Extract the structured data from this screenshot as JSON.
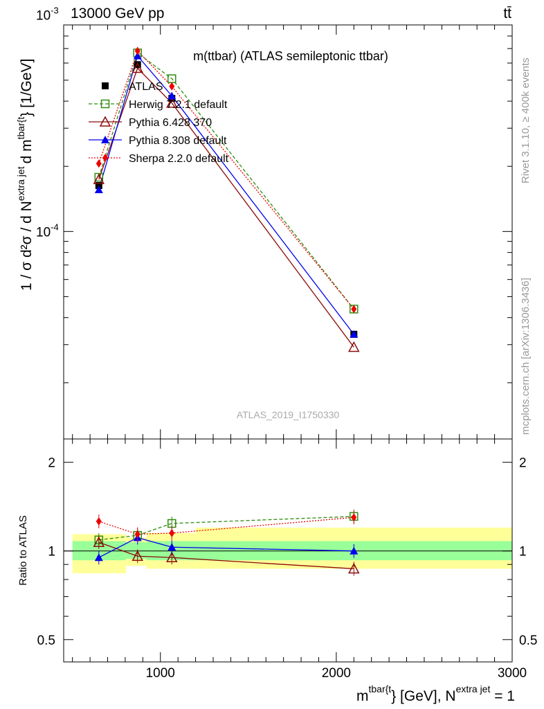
{
  "header": {
    "left": "13000 GeV pp",
    "right": "tt̄"
  },
  "side_text": {
    "rivet": "Rivet 3.1.10, ≥ 400k events",
    "mcplots": "mcplots.cern.ch [arXiv:1306.3436]"
  },
  "colors": {
    "data": "#000000",
    "herwig": "#2e8b0e",
    "pythia6": "#8b0a0a",
    "pythia8": "#0000ee",
    "sherpa": "#ee0000",
    "band_inner": "#99ff99",
    "band_outer": "#ffff99"
  },
  "chart_data": [
    {
      "type": "line",
      "title": "m(ttbar) (ATLAS semileptonic ttbar)",
      "watermark": "ATLAS_2019_I1750330",
      "ylabel": {
        "main": "1 / σ d²σ / d N",
        "sup1": "extra jet",
        "mid": "d m",
        "sup2": "tbar{t",
        "tail": "} [1/GeV]"
      },
      "yscale": "log",
      "ylim": [
        1.1e-05,
        0.0009
      ],
      "xlim": [
        450,
        3000
      ],
      "x": [
        650,
        870,
        1065,
        2100
      ],
      "legend": [
        "ATLAS",
        "Herwig 7.2.1 default",
        "Pythia 6.428 370",
        "Pythia 8.308 default",
        "Sherpa 2.2.0 default"
      ],
      "series": [
        {
          "name": "ATLAS",
          "key": "data",
          "values": [
            0.000163,
            0.00059,
            0.000412,
            3.35e-05
          ]
        },
        {
          "name": "Herwig 7.2.1 default",
          "key": "herwig",
          "values": [
            0.000178,
            0.000668,
            0.000508,
            4.38e-05
          ]
        },
        {
          "name": "Pythia 6.428 370",
          "key": "pythia6",
          "values": [
            0.000174,
            0.000568,
            0.000392,
            2.92e-05
          ]
        },
        {
          "name": "Pythia 8.308 default",
          "key": "pythia8",
          "values": [
            0.000156,
            0.000648,
            0.000423,
            3.35e-05
          ]
        },
        {
          "name": "Sherpa 2.2.0 default",
          "key": "sherpa",
          "values": [
            0.000206,
            0.000683,
            0.000468,
            4.38e-05
          ]
        }
      ],
      "yticks": {
        "major": [
          {
            "value": 0.001,
            "label": "10",
            "exp": "-3"
          },
          {
            "value": 0.0001,
            "label": "10",
            "exp": "-4"
          }
        ]
      }
    },
    {
      "type": "line",
      "ylabel": "Ratio to ATLAS",
      "xlabel": {
        "main": "m",
        "sup": "tbar{t",
        "mid": "} [GeV], N",
        "sup2": "extra jet",
        "tail": " = 1"
      },
      "yscale": "log",
      "ylim": [
        0.42,
        2.4
      ],
      "xlim": [
        450,
        3000
      ],
      "x": [
        650,
        870,
        1065,
        2100
      ],
      "bins": [
        {
          "x0": 500,
          "x1": 805,
          "inner": [
            0.93,
            1.08
          ],
          "outer": [
            0.84,
            1.14
          ]
        },
        {
          "x0": 805,
          "x1": 920,
          "inner": [
            0.94,
            1.07
          ],
          "outer": [
            0.89,
            1.11
          ]
        },
        {
          "x0": 920,
          "x1": 1200,
          "inner": [
            0.93,
            1.08
          ],
          "outer": [
            0.87,
            1.15
          ]
        },
        {
          "x0": 1200,
          "x1": 3000,
          "inner": [
            0.93,
            1.08
          ],
          "outer": [
            0.87,
            1.2
          ]
        }
      ],
      "series": [
        {
          "name": "Herwig 7.2.1 default",
          "key": "herwig",
          "values": [
            1.09,
            1.13,
            1.24,
            1.31
          ]
        },
        {
          "name": "Pythia 6.428 370",
          "key": "pythia6",
          "values": [
            1.07,
            0.96,
            0.95,
            0.87
          ]
        },
        {
          "name": "Pythia 8.308 default",
          "key": "pythia8",
          "values": [
            0.95,
            1.11,
            1.03,
            1.0
          ]
        },
        {
          "name": "Sherpa 2.2.0 default",
          "key": "sherpa",
          "values": [
            1.26,
            1.14,
            1.15,
            1.3
          ]
        }
      ],
      "yticks": [
        {
          "value": 2,
          "label": "2"
        },
        {
          "value": 1,
          "label": "1"
        },
        {
          "value": 0.5,
          "label": "0.5"
        }
      ],
      "xticks": [
        {
          "value": 1000,
          "label": "1000"
        },
        {
          "value": 2000,
          "label": "2000"
        },
        {
          "value": 3000,
          "label": "3000"
        }
      ]
    }
  ]
}
